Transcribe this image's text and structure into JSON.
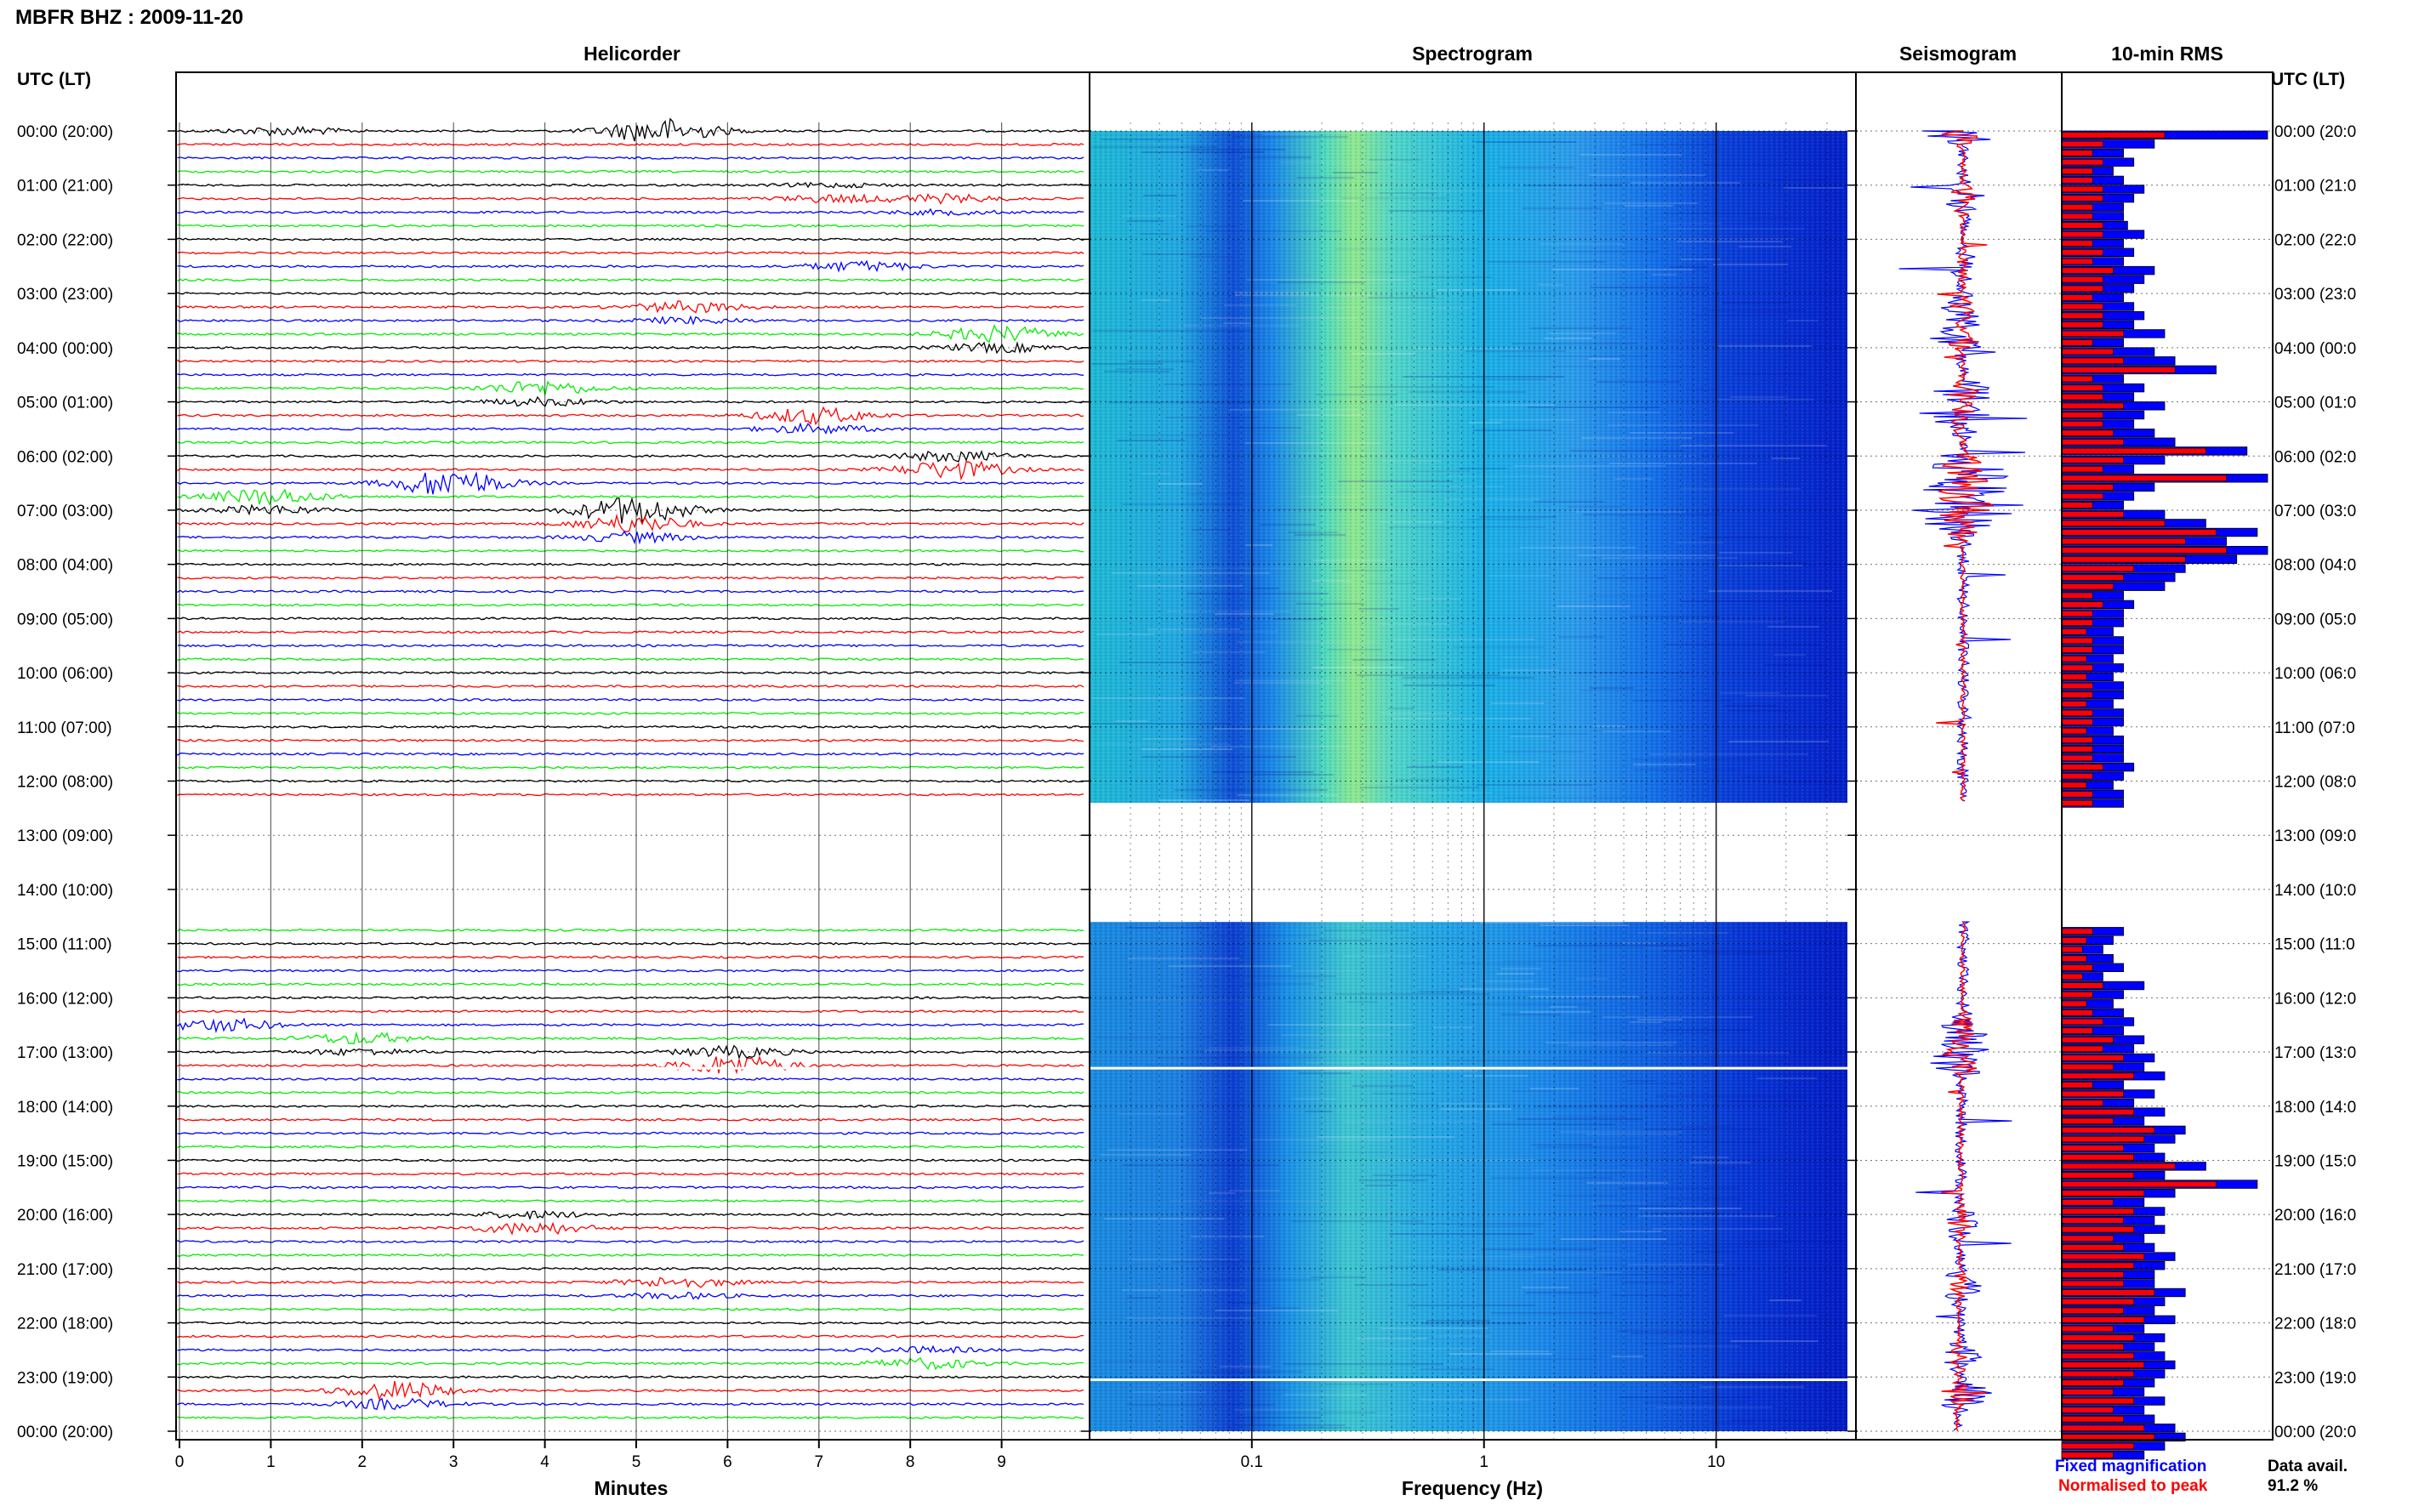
{
  "page": {
    "title": "MBFR BHZ : 2009-11-20",
    "data_avail_label": "Data avail.",
    "data_avail_value": "91.2 %"
  },
  "panels": {
    "helicorder": "Helicorder",
    "spectrogram": "Spectrogram",
    "seismogram": "Seismogram",
    "rms": "10-min RMS"
  },
  "axis_headers": {
    "left": "UTC (LT)",
    "right": "UTC (LT)"
  },
  "legend": {
    "fixed": "Fixed magnification",
    "fixed_color": "#0000ff",
    "normalised": "Normalised to peak",
    "normalised_color": "#ff0000"
  },
  "colors": {
    "black": "#000000",
    "red": "#ff0000",
    "blue": "#0000ff",
    "green": "#00ee00"
  },
  "chart_data": {
    "type": "helicorder",
    "time_labels": [
      "00:00 (20:00)",
      "01:00 (21:00)",
      "02:00 (22:00)",
      "03:00 (23:00)",
      "04:00 (00:00)",
      "05:00 (01:00)",
      "06:00 (02:00)",
      "07:00 (03:00)",
      "08:00 (04:00)",
      "09:00 (05:00)",
      "10:00 (06:00)",
      "11:00 (07:00)",
      "12:00 (08:00)",
      "13:00 (09:00)",
      "14:00 (10:00)",
      "15:00 (11:00)",
      "16:00 (12:00)",
      "17:00 (13:00)",
      "18:00 (14:00)",
      "19:00 (15:00)",
      "20:00 (16:00)",
      "21:00 (17:00)",
      "22:00 (18:00)",
      "23:00 (19:00)",
      "00:00 (20:00)"
    ],
    "right_time_labels": [
      "00:00 (20:0",
      "01:00 (21:0",
      "02:00 (22:0",
      "03:00 (23:0",
      "04:00 (00:0",
      "05:00 (01:0",
      "06:00 (02:0",
      "07:00 (03:0",
      "08:00 (04:0",
      "09:00 (05:0",
      "10:00 (06:0",
      "11:00 (07:0",
      "12:00 (08:0",
      "13:00 (09:0",
      "14:00 (10:0",
      "15:00 (11:0",
      "16:00 (12:0",
      "17:00 (13:0",
      "18:00 (14:0",
      "19:00 (15:0",
      "20:00 (16:0",
      "21:00 (17:0",
      "22:00 (18:0",
      "23:00 (19:0",
      "00:00 (20:0"
    ],
    "helicorder": {
      "xlabel": "Minutes",
      "x_ticks": [
        "0",
        "1",
        "2",
        "3",
        "4",
        "5",
        "6",
        "7",
        "8",
        "9"
      ],
      "xlim": [
        0,
        10
      ],
      "trace_colors": [
        "black",
        "red",
        "blue",
        "green"
      ],
      "gap_hours": [
        12.4,
        14.6
      ],
      "events": [
        {
          "hour": 0.0,
          "minute": 5.3,
          "amp": 0.9
        },
        {
          "hour": 0.0,
          "minute": 1.2,
          "amp": 0.3
        },
        {
          "hour": 1.17,
          "minute": 7.2,
          "amp": 0.35
        },
        {
          "hour": 1.33,
          "minute": 8.4,
          "amp": 0.4
        },
        {
          "hour": 2.5,
          "minute": 7.5,
          "amp": 0.35
        },
        {
          "hour": 3.33,
          "minute": 5.6,
          "amp": 0.55
        },
        {
          "hour": 3.83,
          "minute": 9.0,
          "amp": 0.8
        },
        {
          "hour": 4.83,
          "minute": 4.0,
          "amp": 0.7
        },
        {
          "hour": 5.33,
          "minute": 7.0,
          "amp": 0.8
        },
        {
          "hour": 6.17,
          "minute": 8.5,
          "amp": 0.9
        },
        {
          "hour": 6.5,
          "minute": 3.0,
          "amp": 1.0
        },
        {
          "hour": 6.83,
          "minute": 1.0,
          "amp": 0.8
        },
        {
          "hour": 7.0,
          "minute": 5.0,
          "amp": 1.0
        },
        {
          "hour": 7.33,
          "minute": 5.0,
          "amp": 0.9
        },
        {
          "hour": 16.5,
          "minute": 0.5,
          "amp": 0.45
        },
        {
          "hour": 16.83,
          "minute": 2.0,
          "amp": 0.55
        },
        {
          "hour": 17.17,
          "minute": 6.1,
          "amp": 1.0
        },
        {
          "hour": 20.17,
          "minute": 3.9,
          "amp": 0.6
        },
        {
          "hour": 21.33,
          "minute": 5.5,
          "amp": 0.5
        },
        {
          "hour": 22.67,
          "minute": 8.2,
          "amp": 0.5
        },
        {
          "hour": 23.33,
          "minute": 2.4,
          "amp": 0.9
        }
      ]
    },
    "spectrogram": {
      "xlabel": "Frequency (Hz)",
      "x_scale": "log",
      "xlim": [
        0.02,
        40
      ],
      "x_ticks": [
        "0.1",
        "1",
        "10"
      ]
    },
    "rms": {
      "units": "relative",
      "fixed_magnification": [
        1.0,
        0.45,
        0.3,
        0.35,
        0.25,
        0.3,
        0.4,
        0.35,
        0.3,
        0.3,
        0.32,
        0.4,
        0.3,
        0.35,
        0.3,
        0.45,
        0.4,
        0.35,
        0.3,
        0.35,
        0.4,
        0.35,
        0.5,
        0.3,
        0.45,
        0.55,
        0.75,
        0.3,
        0.4,
        0.35,
        0.5,
        0.4,
        0.35,
        0.45,
        0.55,
        0.9,
        0.5,
        0.35,
        1.0,
        0.45,
        0.35,
        0.3,
        0.5,
        0.7,
        0.95,
        0.8,
        1.0,
        0.85,
        0.6,
        0.55,
        0.5,
        0.3,
        0.35,
        0.3,
        0.3,
        0.25,
        0.3,
        0.3,
        0.25,
        0.3,
        0.25,
        0.3,
        0.3,
        0.25,
        0.3,
        0.3,
        0.25,
        0.3,
        0.3,
        0.3,
        0.35,
        0.3,
        0.25,
        0.3,
        0.3
      ],
      "normalised_to_peak": [
        0.5,
        0.2,
        0.15,
        0.2,
        0.15,
        0.15,
        0.2,
        0.2,
        0.15,
        0.15,
        0.2,
        0.2,
        0.15,
        0.2,
        0.15,
        0.25,
        0.2,
        0.2,
        0.15,
        0.2,
        0.2,
        0.2,
        0.3,
        0.15,
        0.25,
        0.3,
        0.55,
        0.15,
        0.2,
        0.2,
        0.3,
        0.2,
        0.2,
        0.25,
        0.3,
        0.7,
        0.3,
        0.2,
        0.8,
        0.25,
        0.2,
        0.15,
        0.3,
        0.5,
        0.75,
        0.6,
        0.8,
        0.6,
        0.35,
        0.3,
        0.25,
        0.15,
        0.2,
        0.15,
        0.15,
        0.12,
        0.15,
        0.15,
        0.12,
        0.15,
        0.12,
        0.15,
        0.15,
        0.12,
        0.15,
        0.15,
        0.12,
        0.15,
        0.15,
        0.15,
        0.2,
        0.15,
        0.12,
        0.15,
        0.15
      ],
      "fixed_magnification_pm": [
        0.3,
        0.25,
        0.2,
        0.25,
        0.3,
        0.2,
        0.4,
        0.3,
        0.25,
        0.3,
        0.35,
        0.3,
        0.4,
        0.35,
        0.45,
        0.4,
        0.5,
        0.3,
        0.45,
        0.35,
        0.5,
        0.4,
        0.6,
        0.55,
        0.45,
        0.5,
        0.7,
        0.5,
        0.95,
        0.55,
        0.4,
        0.5,
        0.45,
        0.5,
        0.4,
        0.45,
        0.55,
        0.5,
        0.45,
        0.45,
        0.6,
        0.5,
        0.45,
        0.55,
        0.4,
        0.5,
        0.45,
        0.5,
        0.55,
        0.5,
        0.45,
        0.4,
        0.5,
        0.4,
        0.45,
        0.55,
        0.6,
        0.5,
        0.4
      ],
      "normalised_to_peak_pm": [
        0.15,
        0.12,
        0.1,
        0.12,
        0.15,
        0.1,
        0.2,
        0.15,
        0.12,
        0.15,
        0.2,
        0.15,
        0.25,
        0.2,
        0.3,
        0.25,
        0.35,
        0.15,
        0.3,
        0.2,
        0.35,
        0.25,
        0.45,
        0.4,
        0.3,
        0.35,
        0.55,
        0.35,
        0.75,
        0.4,
        0.25,
        0.35,
        0.3,
        0.35,
        0.25,
        0.3,
        0.4,
        0.35,
        0.3,
        0.3,
        0.45,
        0.35,
        0.3,
        0.4,
        0.25,
        0.35,
        0.3,
        0.35,
        0.4,
        0.35,
        0.3,
        0.25,
        0.35,
        0.25,
        0.3,
        0.4,
        0.45,
        0.35,
        0.25
      ]
    }
  }
}
